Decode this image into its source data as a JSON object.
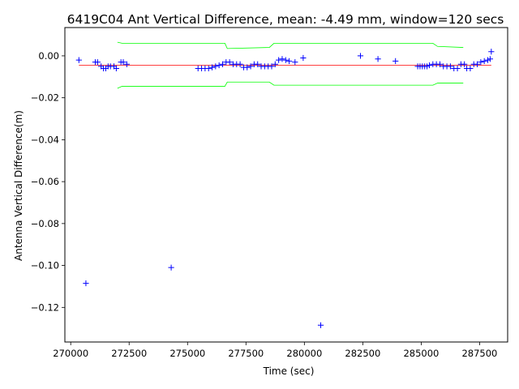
{
  "chart_data": {
    "type": "scatter",
    "title": "6419C04 Ant Vertical Difference, mean: -4.49 mm, window=120 secs",
    "xlabel": "Time (sec)",
    "ylabel": "Antenna Vertical Difference(m)",
    "xlim": [
      269750,
      288700
    ],
    "ylim": [
      -0.1365,
      0.0135
    ],
    "x_ticks": [
      270000,
      272500,
      275000,
      277500,
      280000,
      282500,
      285000,
      287500
    ],
    "x_tick_labels": [
      "270000",
      "272500",
      "275000",
      "277500",
      "280000",
      "282500",
      "285000",
      "287500"
    ],
    "y_ticks": [
      0.0,
      -0.02,
      -0.04,
      -0.06,
      -0.08,
      -0.1,
      -0.12
    ],
    "y_tick_labels": [
      "0.00",
      "−0.02",
      "−0.04",
      "−0.06",
      "−0.08",
      "−0.10",
      "−0.12"
    ],
    "grid": false,
    "series": [
      {
        "kind": "points",
        "marker": "+",
        "color": "#0000ff",
        "x": [
          270350,
          270650,
          271050,
          271150,
          271300,
          271400,
          271500,
          271600,
          271700,
          271850,
          271950,
          272150,
          272250,
          272400,
          274300,
          275450,
          275600,
          275750,
          275900,
          276050,
          276200,
          276350,
          276500,
          276650,
          276800,
          276950,
          277100,
          277250,
          277400,
          277550,
          277700,
          277850,
          278000,
          278150,
          278300,
          278450,
          278600,
          278750,
          278900,
          279050,
          279200,
          279350,
          279600,
          279950,
          280700,
          282400,
          283150,
          283900,
          284850,
          284950,
          285050,
          285150,
          285250,
          285350,
          285500,
          285650,
          285800,
          285950,
          286100,
          286250,
          286400,
          286550,
          286700,
          286850,
          286950,
          287100,
          287250,
          287400,
          287550,
          287700,
          287850,
          287950,
          288000
        ],
        "y": [
          -0.002,
          -0.1085,
          -0.003,
          -0.003,
          -0.005,
          -0.006,
          -0.006,
          -0.005,
          -0.005,
          -0.005,
          -0.006,
          -0.003,
          -0.003,
          -0.004,
          -0.101,
          -0.006,
          -0.006,
          -0.006,
          -0.006,
          -0.0055,
          -0.005,
          -0.0045,
          -0.004,
          -0.003,
          -0.003,
          -0.004,
          -0.004,
          -0.004,
          -0.0055,
          -0.0055,
          -0.005,
          -0.004,
          -0.004,
          -0.005,
          -0.005,
          -0.005,
          -0.005,
          -0.004,
          -0.002,
          -0.0015,
          -0.002,
          -0.0025,
          -0.003,
          -0.001,
          -0.1285,
          0.0,
          -0.0015,
          -0.0025,
          -0.005,
          -0.005,
          -0.005,
          -0.005,
          -0.005,
          -0.0045,
          -0.004,
          -0.004,
          -0.004,
          -0.005,
          -0.005,
          -0.005,
          -0.006,
          -0.006,
          -0.004,
          -0.004,
          -0.006,
          -0.006,
          -0.004,
          -0.004,
          -0.003,
          -0.0025,
          -0.002,
          -0.0015,
          0.002
        ]
      },
      {
        "kind": "mean",
        "color": "#ff0000",
        "x": [
          270350,
          288000
        ],
        "y": [
          -0.00449,
          -0.00449
        ]
      },
      {
        "kind": "bound",
        "color": "#00ff00",
        "segments": [
          {
            "x": [
              272000,
              272200,
              276600,
              276700,
              278500,
              278700,
              285500,
              285700,
              286800
            ],
            "y": [
              0.0065,
              0.006,
              0.006,
              0.0035,
              0.004,
              0.006,
              0.006,
              0.0045,
              0.004
            ]
          },
          {
            "x": [
              272000,
              272200,
              276600,
              276700,
              278500,
              278700,
              285500,
              285700,
              286800
            ],
            "y": [
              -0.0155,
              -0.0145,
              -0.0145,
              -0.0125,
              -0.0125,
              -0.014,
              -0.014,
              -0.013,
              -0.013
            ]
          }
        ]
      }
    ]
  }
}
